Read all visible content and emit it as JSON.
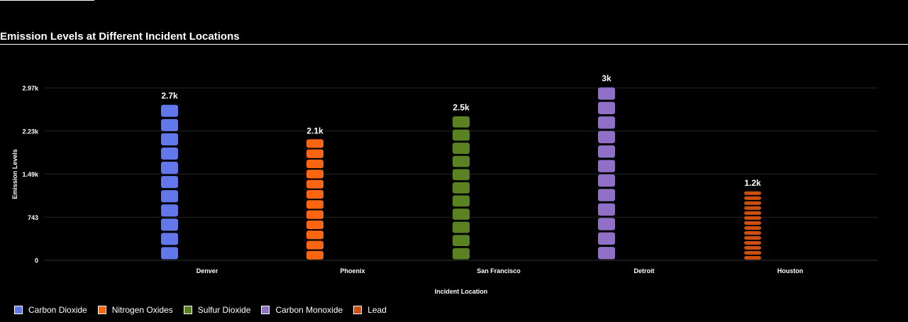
{
  "title": "Emission Levels at Different Incident Locations",
  "chart_data": {
    "type": "bar",
    "style": "stacked-unit-blocks (pictorial bar)",
    "categories": [
      "Denver",
      "Phoenix",
      "San Francisco",
      "Detroit",
      "Houston"
    ],
    "values": [
      2700,
      2100,
      2500,
      3000,
      1200
    ],
    "data_labels": [
      "2.7k",
      "2.1k",
      "2.5k",
      "3k",
      "1.2k"
    ],
    "series": [
      {
        "name": "Carbon Dioxide",
        "category": "Denver",
        "value": 2700,
        "color": "#6277ea"
      },
      {
        "name": "Nitrogen Oxides",
        "category": "Phoenix",
        "value": 2100,
        "color": "#f96510"
      },
      {
        "name": "Sulfur Dioxide",
        "category": "San Francisco",
        "value": 2500,
        "color": "#5a8221"
      },
      {
        "name": "Carbon Monoxide",
        "category": "Detroit",
        "value": 3000,
        "color": "#8f70c6"
      },
      {
        "name": "Lead",
        "category": "Houston",
        "value": 1200,
        "color": "#cc4f0f"
      }
    ],
    "xlabel": "Incident Location",
    "ylabel": "Emission Levels",
    "yticks": [
      0,
      743,
      1486,
      2229,
      2972
    ],
    "ytick_labels": [
      "0",
      "743",
      "1.49k",
      "2.23k",
      "2.97k"
    ],
    "ylim": [
      0,
      2972
    ],
    "grid": true,
    "legend": "bottom-left"
  }
}
